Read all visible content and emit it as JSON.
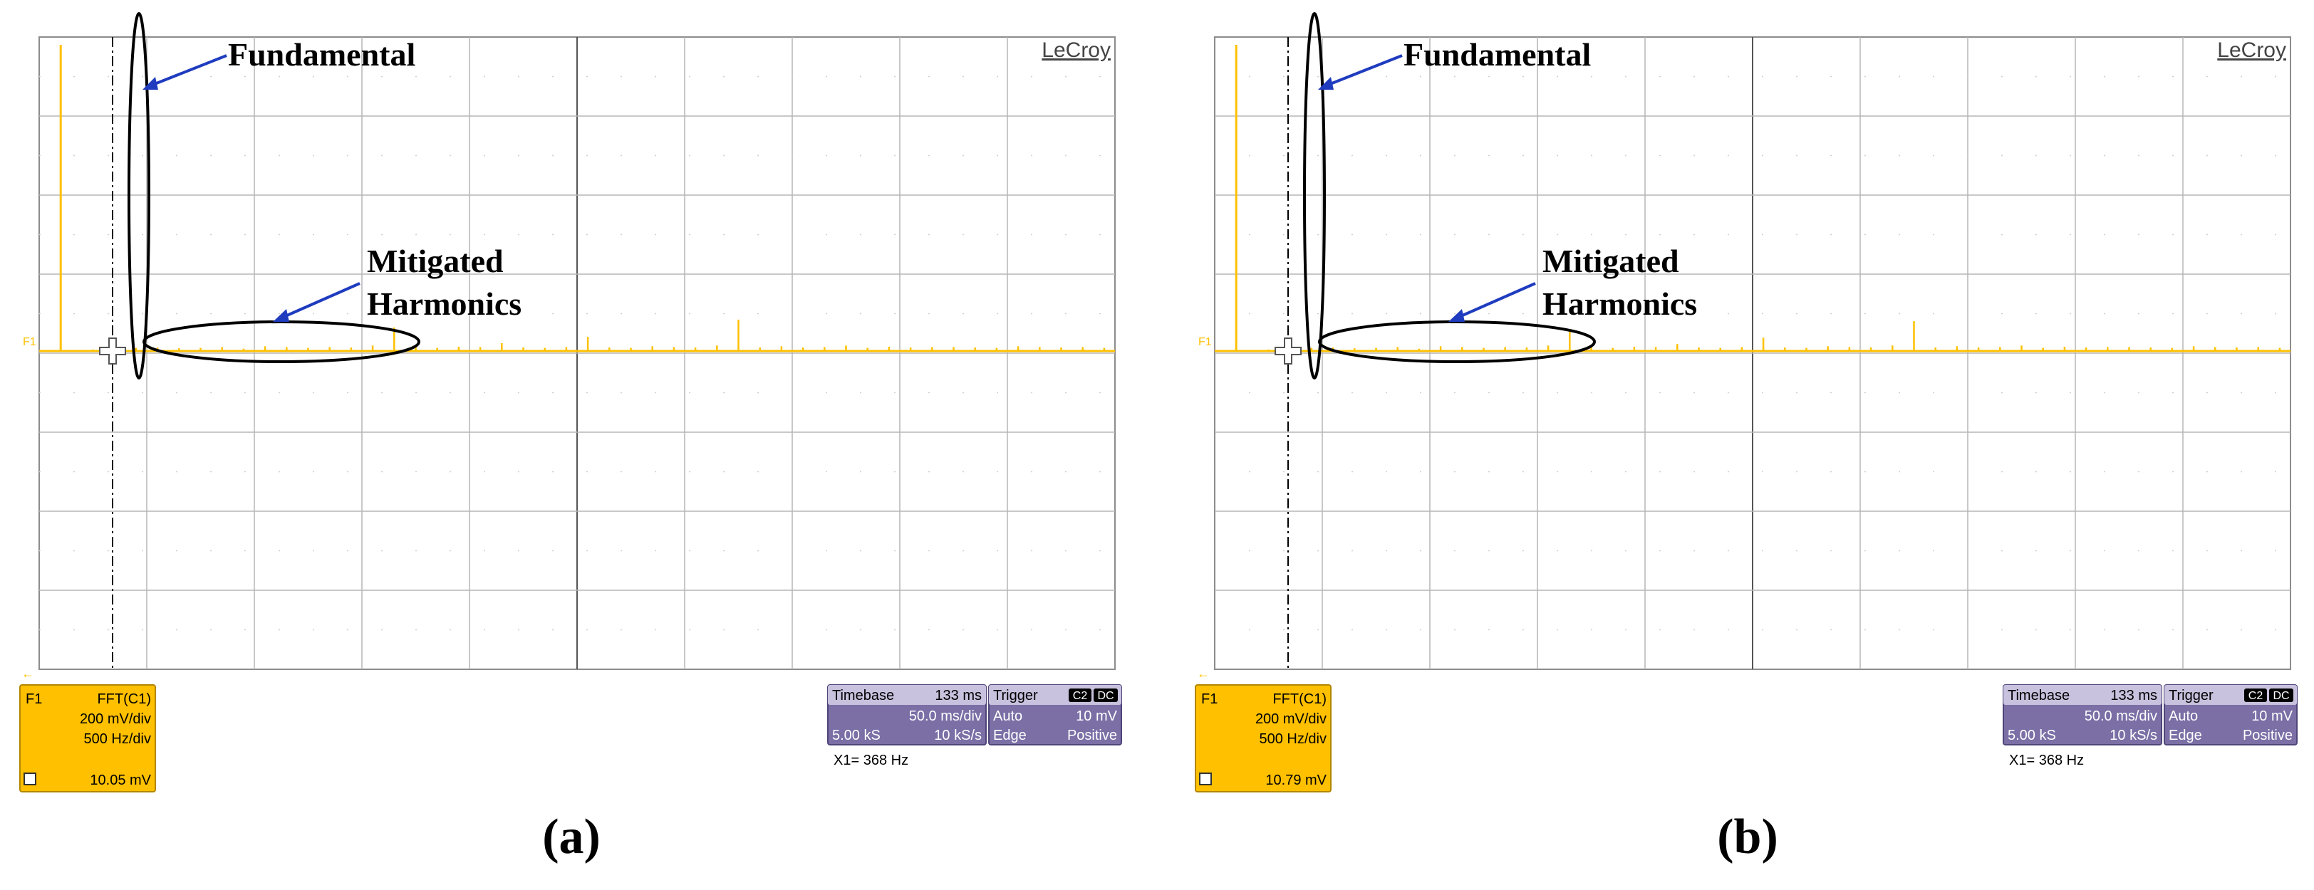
{
  "brand": "LeCroy",
  "trace_label": "F1",
  "annotations": {
    "fundamental": "Fundamental",
    "mitigated_line1": "Mitigated",
    "mitigated_line2": "Harmonics"
  },
  "colors": {
    "trace": "#ffc000",
    "grid": "#8c8c8c",
    "info_box": "#7b6fa6",
    "arrow": "#1f3cbf",
    "ellipse": "#000000"
  },
  "chart_data": [
    {
      "panel": "(a)",
      "type": "line",
      "channel": {
        "name": "F1",
        "function": "FFT(C1)",
        "vdiv": "200 mV/div",
        "hdiv": "500 Hz/div",
        "reading": "10.05 mV"
      },
      "timebase": {
        "label": "Timebase",
        "value": "133 ms",
        "div": "50.0 ms/div",
        "samples": "5.00 kS",
        "rate": "10 kS/s"
      },
      "trigger": {
        "label": "Trigger",
        "badge1": "C2",
        "badge2": "DC",
        "mode": "Auto",
        "level": "10 mV",
        "type": "Edge",
        "slope": "Positive"
      },
      "cursor": "X1=   368 Hz",
      "x": [
        0,
        50,
        100,
        150,
        250,
        350,
        450,
        550,
        650,
        750,
        850,
        950,
        1050,
        1150,
        1250,
        1350,
        1450,
        1550,
        1650,
        1750,
        1850,
        1950,
        2050,
        2150,
        2250,
        2350,
        2450,
        2550,
        2650,
        2750,
        2850,
        2950,
        3050,
        3150,
        3250,
        3350,
        3450,
        3550,
        3650,
        3750,
        3850,
        3950,
        4050,
        4150,
        4250,
        4350,
        4450,
        4550,
        4650,
        4750,
        4850,
        4950
      ],
      "y": [
        0,
        1,
        780,
        2,
        4,
        22,
        8,
        9,
        7,
        8,
        10,
        6,
        12,
        10,
        8,
        10,
        9,
        14,
        60,
        12,
        8,
        11,
        10,
        20,
        9,
        8,
        10,
        36,
        9,
        8,
        12,
        10,
        9,
        14,
        80,
        9,
        12,
        9,
        10,
        14,
        8,
        11,
        9,
        10,
        10,
        9,
        8,
        12,
        10,
        9,
        10,
        8
      ]
    },
    {
      "panel": "(b)",
      "type": "line",
      "channel": {
        "name": "F1",
        "function": "FFT(C1)",
        "vdiv": "200 mV/div",
        "hdiv": "500 Hz/div",
        "reading": "10.79 mV"
      },
      "timebase": {
        "label": "Timebase",
        "value": "133 ms",
        "div": "50.0 ms/div",
        "samples": "5.00 kS",
        "rate": "10 kS/s"
      },
      "trigger": {
        "label": "Trigger",
        "badge1": "C2",
        "badge2": "DC",
        "mode": "Auto",
        "level": "10 mV",
        "type": "Edge",
        "slope": "Positive"
      },
      "cursor": "X1=   368 Hz",
      "x": [
        0,
        50,
        100,
        150,
        250,
        350,
        450,
        550,
        650,
        750,
        850,
        950,
        1050,
        1150,
        1250,
        1350,
        1450,
        1550,
        1650,
        1750,
        1850,
        1950,
        2050,
        2150,
        2250,
        2350,
        2450,
        2550,
        2650,
        2750,
        2850,
        2950,
        3050,
        3150,
        3250,
        3350,
        3450,
        3550,
        3650,
        3750,
        3850,
        3950,
        4050,
        4150,
        4250,
        4350,
        4450,
        4550,
        4650,
        4750,
        4850,
        4950
      ],
      "y": [
        0,
        1,
        780,
        2,
        4,
        20,
        8,
        9,
        7,
        8,
        10,
        6,
        12,
        10,
        8,
        10,
        9,
        14,
        54,
        12,
        8,
        11,
        10,
        18,
        9,
        8,
        10,
        34,
        9,
        8,
        12,
        10,
        9,
        14,
        76,
        9,
        12,
        9,
        10,
        14,
        8,
        11,
        9,
        10,
        10,
        9,
        8,
        12,
        10,
        9,
        10,
        8
      ]
    }
  ]
}
